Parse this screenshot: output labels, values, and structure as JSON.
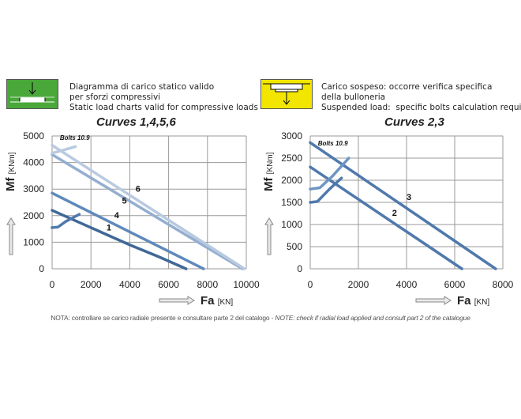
{
  "legend_compressive": {
    "lines": [
      "Diagramma di carico statico valido",
      "per sforzi compressivi",
      "Static load charts valid for compressive loads"
    ],
    "icon": "compressive-load-icon",
    "color": "#4aa83a"
  },
  "legend_suspended": {
    "lines": [
      "Carico sospeso: occorre verifica specifica",
      "della bulloneria",
      "Suspended load:  specific bolts calculation required"
    ],
    "icon": "suspended-load-icon",
    "color": "#f2e600"
  },
  "note": {
    "it": "NOTA: controllare se carico radiale presente e consultare parte 2 del catalogo - ",
    "en": "NOTE: check if radial load applied and consult part 2 of the catalogue"
  },
  "chart_data": [
    {
      "type": "line",
      "title": "Curves 1,4,5,6",
      "xlabel": "Fa",
      "xunit": "[KN]",
      "ylabel": "Mf",
      "yunit": "[KNm]",
      "xlim": [
        0,
        10000
      ],
      "ylim": [
        0,
        5000
      ],
      "xticks": [
        0,
        2000,
        4000,
        6000,
        8000,
        10000
      ],
      "yticks": [
        0,
        1000,
        2000,
        3000,
        4000,
        5000
      ],
      "grid": true,
      "annotation": "Bolts 10.9",
      "series": [
        {
          "name": "1",
          "color": "#3f6897",
          "points": [
            [
              0,
              2200
            ],
            [
              2000,
              1550
            ],
            [
              4000,
              900
            ],
            [
              5500,
              450
            ],
            [
              6900,
              0
            ]
          ],
          "label_at": [
            2800,
            1450
          ]
        },
        {
          "name": "4",
          "color": "#5f89bb",
          "points": [
            [
              0,
              2850
            ],
            [
              7800,
              0
            ]
          ],
          "label_at": [
            3200,
            1900
          ]
        },
        {
          "name": "5",
          "color": "#93aed0",
          "points": [
            [
              0,
              4300
            ],
            [
              9800,
              0
            ]
          ],
          "label_at": [
            3600,
            2450
          ]
        },
        {
          "name": "6",
          "color": "#b9cae0",
          "points": [
            [
              0,
              4650
            ],
            [
              9900,
              0
            ]
          ],
          "label_at": [
            4300,
            2900
          ]
        }
      ],
      "bolt_curves": [
        {
          "color": "#4f79ad",
          "points": [
            [
              0,
              1550
            ],
            [
              300,
              1570
            ],
            [
              700,
              1780
            ],
            [
              1400,
              2050
            ]
          ]
        },
        {
          "color": "#b9cae0",
          "points": [
            [
              0,
              4350
            ],
            [
              500,
              4450
            ],
            [
              1200,
              4600
            ]
          ]
        }
      ]
    },
    {
      "type": "line",
      "title": "Curves 2,3",
      "xlabel": "Fa",
      "xunit": "[KN]",
      "ylabel": "Mf",
      "yunit": "[KNm]",
      "xlim": [
        0,
        8000
      ],
      "ylim": [
        0,
        3000
      ],
      "xticks": [
        0,
        2000,
        4000,
        6000,
        8000
      ],
      "yticks": [
        0,
        500,
        1000,
        1500,
        2000,
        2500,
        3000
      ],
      "grid": true,
      "annotation": "Bolts 10.9",
      "series": [
        {
          "name": "2",
          "color": "#4f79ad",
          "points": [
            [
              0,
              2300
            ],
            [
              6300,
              0
            ]
          ],
          "label_at": [
            3400,
            1200
          ]
        },
        {
          "name": "3",
          "color": "#4f79ad",
          "points": [
            [
              0,
              2850
            ],
            [
              7700,
              0
            ]
          ],
          "label_at": [
            4000,
            1550
          ]
        }
      ],
      "bolt_curves": [
        {
          "color": "#4f79ad",
          "points": [
            [
              0,
              1500
            ],
            [
              300,
              1520
            ],
            [
              800,
              1800
            ],
            [
              1300,
              2050
            ]
          ]
        },
        {
          "color": "#6e95c4",
          "points": [
            [
              0,
              1800
            ],
            [
              400,
              1830
            ],
            [
              900,
              2080
            ],
            [
              1600,
              2500
            ]
          ]
        }
      ]
    }
  ]
}
